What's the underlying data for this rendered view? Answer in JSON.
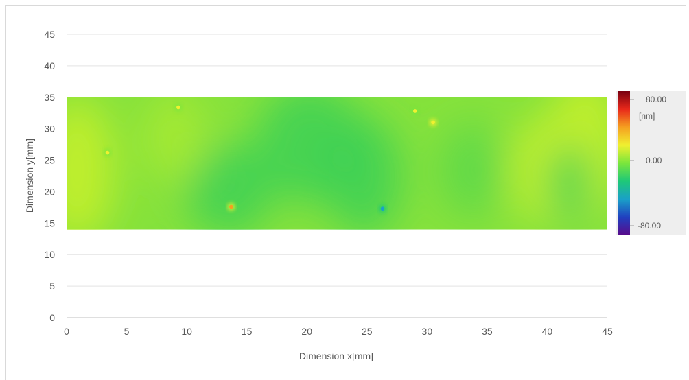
{
  "chart_data": {
    "type": "heatmap",
    "title": "",
    "xlabel": "Dimension x[mm]",
    "ylabel": "Dimension y[mm]",
    "xlim": [
      0,
      45
    ],
    "ylim": [
      0,
      45
    ],
    "x_ticks": [
      "0",
      "5",
      "10",
      "15",
      "20",
      "25",
      "30",
      "35",
      "40",
      "45"
    ],
    "y_ticks": [
      "0",
      "5",
      "10",
      "15",
      "20",
      "25",
      "30",
      "35",
      "40",
      "45"
    ],
    "grid": "horizontal",
    "map_extent": {
      "x": [
        0,
        45
      ],
      "y": [
        14,
        35
      ]
    },
    "colorbar": {
      "range": [
        -80,
        80
      ],
      "unit": "[nm]",
      "labels": [
        "80.00",
        "0.00",
        "-80.00"
      ],
      "label_values": [
        80,
        0,
        -80
      ],
      "colors": [
        "#7a0010",
        "#e8281a",
        "#f5a020",
        "#f0f030",
        "#7ae63c",
        "#1ec878",
        "#1aa0c8",
        "#2040c0",
        "#5a0a8a"
      ]
    },
    "features": [
      {
        "x": 13.7,
        "y": 17.6,
        "value": 45
      },
      {
        "x": 26.3,
        "y": 17.3,
        "value": -35
      },
      {
        "x": 29.0,
        "y": 32.8,
        "value": 20
      },
      {
        "x": 30.5,
        "y": 31.0,
        "value": 25
      },
      {
        "x": 3.4,
        "y": 26.2,
        "value": 15
      },
      {
        "x": 9.3,
        "y": 33.4,
        "value": 15
      }
    ],
    "background_colors": {
      "base": "#86e23c",
      "warm": "#c8f02a",
      "cool": "#3cd056"
    }
  }
}
